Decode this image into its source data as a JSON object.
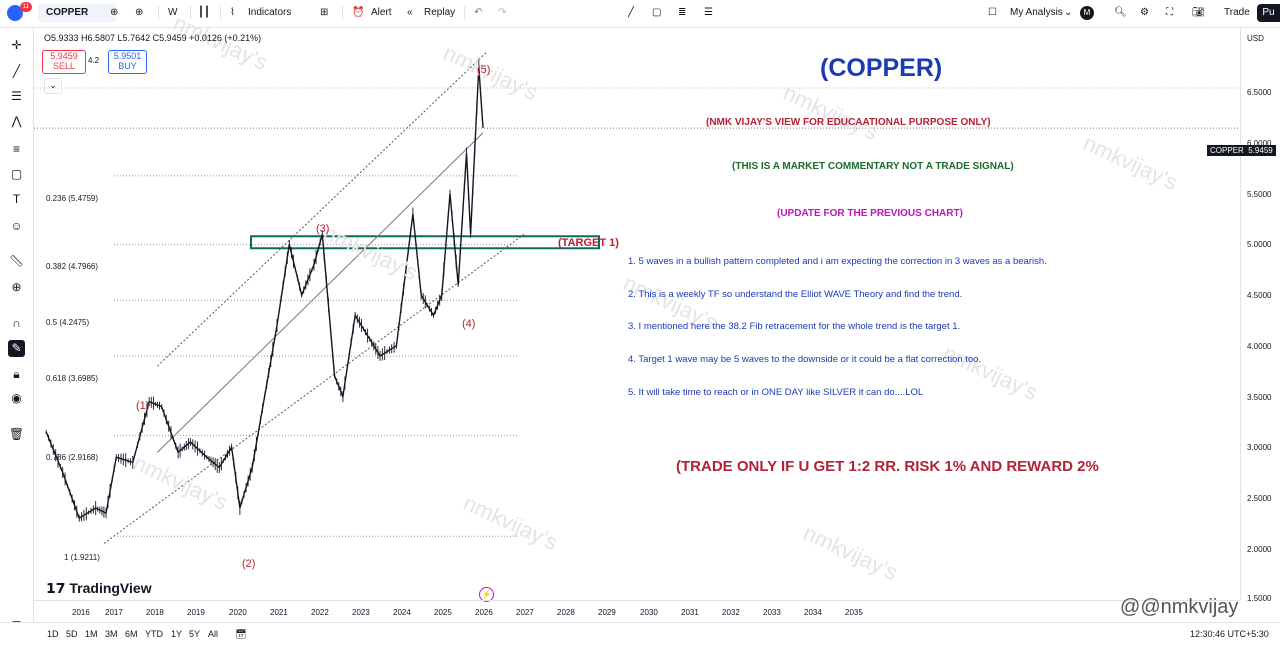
{
  "header": {
    "notification_count": "11",
    "symbol": "COPPER",
    "interval": "W",
    "indicators_label": "Indicators",
    "alert_label": "Alert",
    "replay_label": "Replay",
    "layout_name": "My Analysis",
    "layout_badge": "M",
    "trade_label": "Trade",
    "publish_label": "Pu"
  },
  "legend": {
    "ohlc": "O5.9333 H6.5807 L5.7642 C5.9459 +0.0126 (+0.21%)",
    "sell_price": "5.9459",
    "sell_label": "SELL",
    "spread": "4.2",
    "buy_price": "5.9501",
    "buy_label": "BUY"
  },
  "fib_levels": [
    {
      "label": "0.236 (5.4759)"
    },
    {
      "label": "0.382 (4.7966)"
    },
    {
      "label": "0.5 (4.2475)"
    },
    {
      "label": "0.618 (3.6985)"
    },
    {
      "label": "0.786 (2.9168)"
    },
    {
      "label": "1 (1.9211)"
    }
  ],
  "wave_labels": {
    "w1": "(1)",
    "w2": "(2)",
    "w3": "(3)",
    "w4": "(4)",
    "w5": "(5)"
  },
  "annotations": {
    "title": "(COPPER)",
    "disclaimer": "(NMK VIJAY'S VIEW FOR EDUCAATIONAL PURPOSE ONLY)",
    "commentary": "(THIS IS A MARKET COMMENTARY NOT A TRADE SIGNAL)",
    "update": "(UPDATE FOR THE PREVIOUS CHART)",
    "target": "(TARGET 1)",
    "points": [
      "1. 5 waves in a bullish pattern completed and i am expecting the correction in 3 waves as a bearish.",
      "2. This is a weekly TF so understand the Elliot WAVE Theory and find the trend.",
      "3. I mentioned here the 38.2 Fib retracement for the whole trend is the target 1.",
      "4. Target 1 wave may be 5 waves to the downside or it could be a flat correction too.",
      "5. It will take time to reach or in ONE DAY like SILVER it can do....LOL"
    ],
    "trade_rule": "(TRADE ONLY IF U GET 1:2 RR. RISK 1% AND REWARD 2%",
    "watermark": "nmkvijay's",
    "handle": "@nmkvijay"
  },
  "branding": {
    "logo": "TradingView"
  },
  "price_axis": {
    "currency": "USD",
    "labels": [
      "6.5000",
      "6.0000",
      "5.5000",
      "5.0000",
      "4.5000",
      "4.0000",
      "3.5000",
      "3.0000",
      "2.5000",
      "2.0000",
      "1.5000"
    ],
    "last_symbol": "COPPER",
    "last_price": "5.9459"
  },
  "time_axis": {
    "labels": [
      "2016",
      "2017",
      "2018",
      "2019",
      "2020",
      "2021",
      "2022",
      "2023",
      "2024",
      "2025",
      "2026",
      "2027",
      "2028",
      "2029",
      "2030",
      "2031",
      "2032",
      "2033",
      "2034",
      "2035"
    ]
  },
  "bottom": {
    "timeframes": [
      "1D",
      "5D",
      "1M",
      "3M",
      "6M",
      "YTD",
      "1Y",
      "5Y",
      "All"
    ],
    "clock": "12:30:46 UTC+5:30"
  },
  "chart_data": {
    "type": "line",
    "series": [
      {
        "x": [
          2015.5,
          2015.9,
          2016.3,
          2016.7,
          2016.95,
          2017.2,
          2017.6,
          2018.0,
          2018.3,
          2018.7,
          2019.0,
          2019.4,
          2019.7,
          2020.0,
          2020.2,
          2020.5,
          2020.8,
          2021.1,
          2021.4,
          2021.7,
          2022.0,
          2022.2,
          2022.5,
          2022.7,
          2023.0,
          2023.3,
          2023.6,
          2024.0,
          2024.4,
          2024.6,
          2024.9,
          2025.1,
          2025.3,
          2025.5,
          2025.7,
          2025.8,
          2026.0,
          2026.1
        ],
        "y": [
          2.95,
          2.55,
          2.1,
          2.2,
          2.15,
          2.7,
          2.65,
          3.25,
          3.2,
          2.75,
          2.85,
          2.7,
          2.6,
          2.8,
          2.2,
          2.6,
          3.3,
          4.0,
          4.8,
          4.3,
          4.6,
          4.9,
          3.5,
          3.3,
          4.1,
          3.9,
          3.7,
          3.8,
          5.1,
          4.3,
          4.1,
          4.3,
          5.3,
          4.4,
          5.7,
          4.9,
          6.55,
          5.95
        ]
      }
    ],
    "ylim": [
      1.5,
      6.9
    ],
    "xlim": [
      2015.3,
      2035.8
    ]
  }
}
